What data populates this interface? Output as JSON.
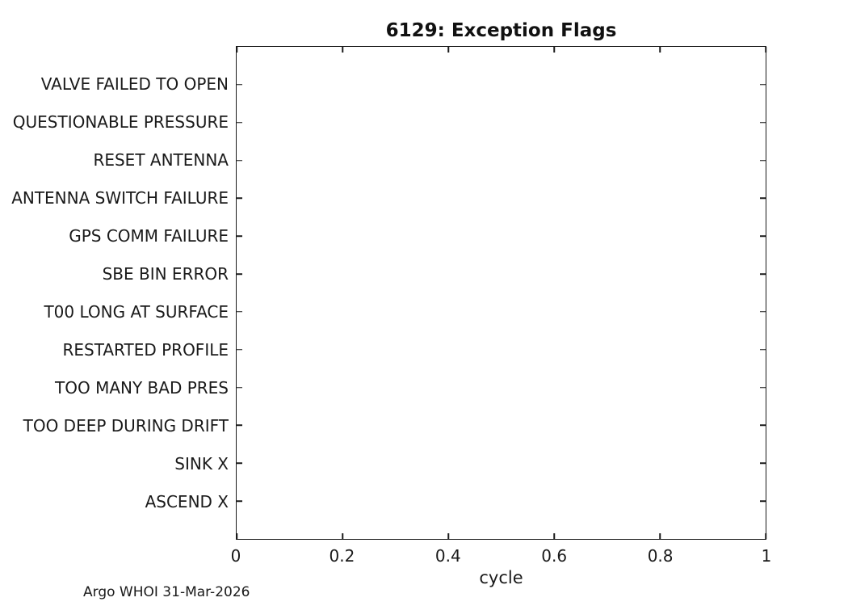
{
  "chart_data": {
    "type": "scatter",
    "title": "6129: Exception Flags",
    "xlabel": "cycle",
    "xlim": [
      0,
      1
    ],
    "x_ticks": [
      0,
      0.2,
      0.4,
      0.6,
      0.8,
      1
    ],
    "x_tick_labels": [
      "0",
      "0.2",
      "0.4",
      "0.6",
      "0.8",
      "1"
    ],
    "y_categories": [
      "VALVE FAILED TO OPEN",
      "QUESTIONABLE PRESSURE",
      "RESET ANTENNA",
      "ANTENNA SWITCH FAILURE",
      "GPS COMM FAILURE",
      "SBE BIN ERROR",
      "T00 LONG AT SURFACE",
      "RESTARTED PROFILE",
      "TOO MANY BAD PRES",
      "TOO DEEP DURING DRIFT",
      "SINK X",
      "ASCEND X"
    ],
    "series": [],
    "legend": null,
    "grid": false
  },
  "footer": {
    "credit": "Argo WHOI 31-Mar-2026"
  },
  "colors": {
    "background": "#ffffff",
    "axis": "#1a1a1a",
    "text": "#1a1a1a",
    "title": "#111111"
  }
}
